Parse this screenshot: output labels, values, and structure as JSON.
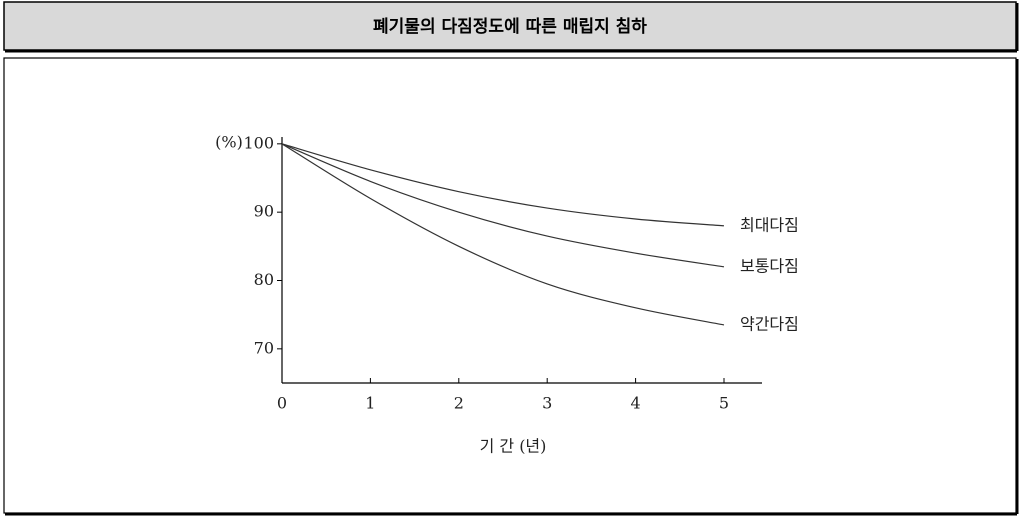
{
  "chart_data": {
    "type": "line",
    "title": "폐기물의 다짐정도에 따른 매립지 침하",
    "ylabel": "(%)",
    "xlabel": "기 간 (년)",
    "x": [
      0,
      1,
      2,
      3,
      4,
      5
    ],
    "series": [
      {
        "name": "최대다짐",
        "color": "#333333",
        "values": [
          100,
          96.2,
          93,
          90.6,
          89,
          88
        ]
      },
      {
        "name": "보통다짐",
        "color": "#333333",
        "values": [
          100,
          94.5,
          90,
          86.5,
          84,
          82
        ]
      },
      {
        "name": "약간다짐",
        "color": "#333333",
        "values": [
          100,
          92,
          85,
          79.5,
          76,
          73.5
        ]
      }
    ],
    "xlim": [
      0,
      5.43
    ],
    "ylim": [
      65,
      101
    ],
    "xticks": [
      0,
      1,
      2,
      3,
      4,
      5
    ],
    "yticks": [
      70,
      80,
      90,
      100
    ]
  }
}
